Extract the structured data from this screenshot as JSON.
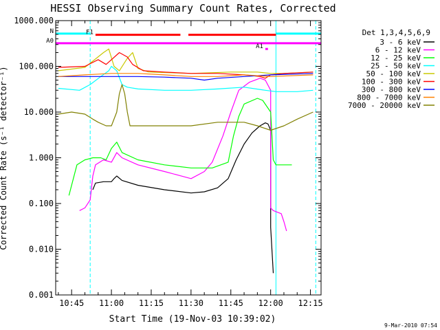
{
  "chart_data": {
    "type": "line",
    "title": "HESSI Observing Summary Count Rates, Corrected",
    "xlabel": "Start Time (19-Nov-03 10:39:02)",
    "ylabel": "Corrected Count Rate (s⁻¹ detector⁻¹)",
    "yscale": "log",
    "ylim": [
      0.001,
      1000
    ],
    "xlim": [
      "10:39",
      "12:19"
    ],
    "xticks": [
      "10:45",
      "11:00",
      "11:15",
      "11:30",
      "11:45",
      "12:00",
      "12:15"
    ],
    "yticks": [
      "0.001",
      "0.010",
      "0.100",
      "1.000",
      "10.000",
      "100.000",
      "1000.000"
    ],
    "grid": false,
    "legend_placement": "right",
    "legend_title": "Det 1,3,4,5,6,9",
    "date_stamp": "9-Mar-2010 07:54",
    "series": [
      {
        "name": "3 - 6 keV",
        "color": "#000000",
        "points": [
          [
            "10:53",
            0.2
          ],
          [
            "10:54",
            0.28
          ],
          [
            "10:57",
            0.3
          ],
          [
            "11:00",
            0.3
          ],
          [
            "11:01",
            0.35
          ],
          [
            "11:02",
            0.4
          ],
          [
            "11:04",
            0.32
          ],
          [
            "11:10",
            0.25
          ],
          [
            "11:20",
            0.2
          ],
          [
            "11:30",
            0.17
          ],
          [
            "11:35",
            0.18
          ],
          [
            "11:40",
            0.22
          ],
          [
            "11:44",
            0.35
          ],
          [
            "11:47",
            0.9
          ],
          [
            "11:50",
            2.0
          ],
          [
            "11:53",
            3.5
          ],
          [
            "11:56",
            5.0
          ],
          [
            "11:58",
            5.8
          ],
          [
            "11:59",
            5.5
          ],
          [
            "12:00",
            4.0
          ],
          [
            "12:00",
            0.03
          ],
          [
            "12:01",
            0.003
          ]
        ]
      },
      {
        "name": "6 - 12 keV",
        "color": "#ff00ff",
        "points": [
          [
            "10:48",
            0.07
          ],
          [
            "10:50",
            0.08
          ],
          [
            "10:52",
            0.12
          ],
          [
            "10:53",
            0.4
          ],
          [
            "10:54",
            0.7
          ],
          [
            "10:57",
            0.9
          ],
          [
            "11:00",
            0.8
          ],
          [
            "11:02",
            1.3
          ],
          [
            "11:04",
            1.0
          ],
          [
            "11:10",
            0.7
          ],
          [
            "11:20",
            0.5
          ],
          [
            "11:30",
            0.35
          ],
          [
            "11:35",
            0.5
          ],
          [
            "11:38",
            0.8
          ],
          [
            "11:42",
            3.0
          ],
          [
            "11:45",
            10.0
          ],
          [
            "11:48",
            30.0
          ],
          [
            "11:52",
            45.0
          ],
          [
            "11:56",
            55.0
          ],
          [
            "11:58",
            50.0
          ],
          [
            "12:00",
            30.0
          ],
          [
            "12:00",
            0.08
          ],
          [
            "12:01",
            0.07
          ],
          [
            "12:04",
            0.06
          ],
          [
            "12:05",
            0.04
          ],
          [
            "12:06",
            0.025
          ]
        ]
      },
      {
        "name": "12 - 25 keV",
        "color": "#00ff00",
        "points": [
          [
            "10:44",
            0.15
          ],
          [
            "10:47",
            0.7
          ],
          [
            "10:50",
            0.9
          ],
          [
            "10:53",
            1.0
          ],
          [
            "10:56",
            1.0
          ],
          [
            "10:58",
            0.9
          ],
          [
            "11:00",
            1.6
          ],
          [
            "11:02",
            2.2
          ],
          [
            "11:04",
            1.3
          ],
          [
            "11:10",
            0.9
          ],
          [
            "11:20",
            0.7
          ],
          [
            "11:30",
            0.6
          ],
          [
            "11:38",
            0.6
          ],
          [
            "11:44",
            0.8
          ],
          [
            "11:46",
            3.0
          ],
          [
            "11:48",
            8.0
          ],
          [
            "11:50",
            15.0
          ],
          [
            "11:55",
            20.0
          ],
          [
            "11:57",
            18.0
          ],
          [
            "12:00",
            10.0
          ],
          [
            "12:01",
            0.9
          ],
          [
            "12:02",
            0.7
          ],
          [
            "12:08",
            0.7
          ]
        ]
      },
      {
        "name": "25 - 50 keV",
        "color": "#00ffff",
        "points": [
          [
            "10:40",
            33.0
          ],
          [
            "10:48",
            30.0
          ],
          [
            "10:52",
            40.0
          ],
          [
            "10:56",
            60.0
          ],
          [
            "10:59",
            80.0
          ],
          [
            "11:00",
            100.0
          ],
          [
            "11:02",
            80.0
          ],
          [
            "11:04",
            40.0
          ],
          [
            "11:06",
            35.0
          ],
          [
            "11:10",
            32.0
          ],
          [
            "11:20",
            30.0
          ],
          [
            "11:30",
            30.0
          ],
          [
            "11:40",
            32.0
          ],
          [
            "11:50",
            35.0
          ],
          [
            "11:58",
            30.0
          ],
          [
            "12:02",
            28.0
          ],
          [
            "12:10",
            28.0
          ],
          [
            "12:16",
            30.0
          ]
        ]
      },
      {
        "name": "50 - 100 keV",
        "color": "#c8c800",
        "points": [
          [
            "10:40",
            80.0
          ],
          [
            "10:50",
            95.0
          ],
          [
            "10:53",
            130.0
          ],
          [
            "10:57",
            200.0
          ],
          [
            "10:59",
            240.0
          ],
          [
            "11:01",
            100.0
          ],
          [
            "11:03",
            80.0
          ],
          [
            "11:06",
            150.0
          ],
          [
            "11:08",
            200.0
          ],
          [
            "11:10",
            90.0
          ],
          [
            "11:14",
            75.0
          ],
          [
            "11:30",
            70.0
          ],
          [
            "11:45",
            75.0
          ],
          [
            "11:55",
            75.0
          ],
          [
            "12:00",
            70.0
          ],
          [
            "12:05",
            70.0
          ],
          [
            "12:16",
            75.0
          ]
        ]
      },
      {
        "name": "100 - 300 keV",
        "color": "#ff0000",
        "points": [
          [
            "10:40",
            95.0
          ],
          [
            "10:50",
            100.0
          ],
          [
            "10:55",
            140.0
          ],
          [
            "10:58",
            110.0
          ],
          [
            "11:00",
            140.0
          ],
          [
            "11:03",
            200.0
          ],
          [
            "11:06",
            160.0
          ],
          [
            "11:08",
            110.0
          ],
          [
            "11:12",
            80.0
          ],
          [
            "11:20",
            75.0
          ],
          [
            "11:30",
            70.0
          ],
          [
            "11:40",
            70.0
          ],
          [
            "11:50",
            65.0
          ],
          [
            "11:56",
            60.0
          ],
          [
            "11:58",
            55.0
          ],
          [
            "12:00",
            65.0
          ],
          [
            "12:05",
            70.0
          ],
          [
            "12:16",
            75.0
          ]
        ]
      },
      {
        "name": "300 - 800 keV",
        "color": "#0000ff",
        "points": [
          [
            "10:40",
            60.0
          ],
          [
            "10:55",
            60.0
          ],
          [
            "11:10",
            60.0
          ],
          [
            "11:20",
            58.0
          ],
          [
            "11:30",
            55.0
          ],
          [
            "11:35",
            50.0
          ],
          [
            "11:40",
            55.0
          ],
          [
            "11:50",
            60.0
          ],
          [
            "12:00",
            65.0
          ],
          [
            "12:16",
            70.0
          ]
        ]
      },
      {
        "name": "800 - 7000 keV",
        "color": "#ff8000",
        "points": [
          [
            "10:40",
            60.0
          ],
          [
            "10:50",
            65.0
          ],
          [
            "11:00",
            70.0
          ],
          [
            "11:10",
            70.0
          ],
          [
            "11:20",
            65.0
          ],
          [
            "11:30",
            60.0
          ],
          [
            "11:40",
            60.0
          ],
          [
            "11:50",
            65.0
          ],
          [
            "12:00",
            60.0
          ],
          [
            "12:16",
            65.0
          ]
        ]
      },
      {
        "name": "7000 - 20000 keV",
        "color": "#808000",
        "points": [
          [
            "10:40",
            9.0
          ],
          [
            "10:45",
            10.0
          ],
          [
            "10:50",
            9.0
          ],
          [
            "10:53",
            7.0
          ],
          [
            "10:55",
            6.0
          ],
          [
            "10:58",
            5.0
          ],
          [
            "11:00",
            5.0
          ],
          [
            "11:02",
            10.0
          ],
          [
            "11:03",
            25.0
          ],
          [
            "11:04",
            40.0
          ],
          [
            "11:05",
            25.0
          ],
          [
            "11:06",
            10.0
          ],
          [
            "11:07",
            5.0
          ],
          [
            "11:15",
            5.0
          ],
          [
            "11:30",
            5.0
          ],
          [
            "11:40",
            6.0
          ],
          [
            "11:50",
            6.0
          ],
          [
            "11:55",
            5.0
          ],
          [
            "12:00",
            4.0
          ],
          [
            "12:05",
            5.0
          ],
          [
            "12:10",
            7.0
          ],
          [
            "12:16",
            10.0
          ]
        ]
      }
    ],
    "flags": [
      {
        "label": "N",
        "color": "#00ffff",
        "level": 520,
        "spans": [
          [
            "10:39",
            "10:52"
          ],
          [
            "12:02",
            "12:19"
          ]
        ]
      },
      {
        "label": "F1",
        "color": "#ff0000",
        "level": 490,
        "spans": [
          [
            "10:54",
            "11:26"
          ],
          [
            "11:29",
            "12:02"
          ]
        ]
      },
      {
        "label": "A0",
        "color": "#ff00ff",
        "level": 320,
        "spans": [
          [
            "10:39",
            "12:19"
          ]
        ]
      },
      {
        "label": "A1",
        "color": "#ff00ff",
        "level": 240,
        "spans": [
          [
            "11:58",
            "11:59"
          ]
        ]
      }
    ],
    "vertical_markers": [
      {
        "time": "10:39",
        "color": "#00ffff",
        "style": "solid"
      },
      {
        "time": "10:52",
        "color": "#00ffff",
        "style": "dashed"
      },
      {
        "time": "12:02",
        "color": "#00ffff",
        "style": "solid"
      },
      {
        "time": "12:17",
        "color": "#00ffff",
        "style": "dashed"
      }
    ]
  }
}
